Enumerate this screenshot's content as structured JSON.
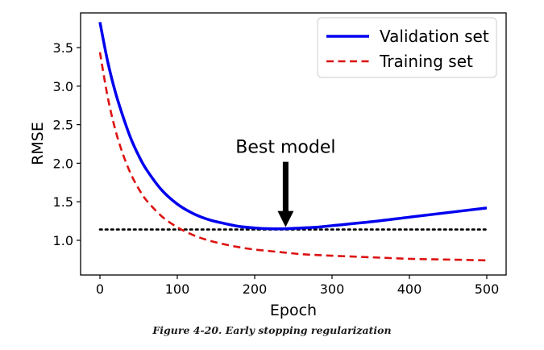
{
  "chart_data": {
    "type": "line",
    "xlabel": "Epoch",
    "ylabel": "RMSE",
    "xlim": [
      -25,
      525
    ],
    "ylim": [
      0.55,
      3.95
    ],
    "xticks": [
      0,
      100,
      200,
      300,
      400,
      500
    ],
    "yticks": [
      1.0,
      1.5,
      2.0,
      2.5,
      3.0,
      3.5
    ],
    "x": [
      0,
      10,
      20,
      30,
      40,
      50,
      60,
      80,
      100,
      120,
      140,
      160,
      180,
      200,
      220,
      240,
      260,
      280,
      300,
      350,
      400,
      450,
      500
    ],
    "series": [
      {
        "name": "Validation set",
        "style": "solid",
        "color": "#0000ee",
        "values": [
          3.83,
          3.32,
          2.92,
          2.6,
          2.32,
          2.1,
          1.92,
          1.65,
          1.47,
          1.35,
          1.27,
          1.22,
          1.18,
          1.16,
          1.15,
          1.15,
          1.16,
          1.17,
          1.19,
          1.24,
          1.3,
          1.36,
          1.42
        ]
      },
      {
        "name": "Training set",
        "style": "dashed",
        "color": "#dd1111",
        "values": [
          3.44,
          2.86,
          2.43,
          2.11,
          1.86,
          1.67,
          1.52,
          1.31,
          1.17,
          1.07,
          1.0,
          0.95,
          0.91,
          0.88,
          0.86,
          0.84,
          0.82,
          0.81,
          0.8,
          0.78,
          0.76,
          0.75,
          0.74
        ]
      }
    ],
    "reference_line": {
      "y": 1.14,
      "style": "dotted",
      "color": "#000000"
    },
    "annotation": {
      "text": "Best model",
      "x": 240,
      "y": 1.15
    },
    "legend_position": "top-right",
    "grid": false
  },
  "caption": "Figure 4-20. Early stopping regularization"
}
